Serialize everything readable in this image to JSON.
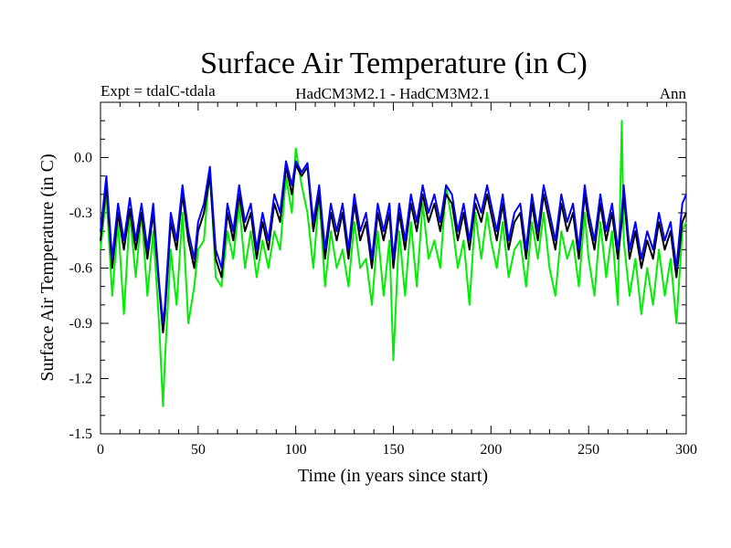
{
  "chart_data": {
    "type": "line",
    "title": "Surface Air Temperature (in C)",
    "subtitle_left": "Expt = tdalC-tdala",
    "subtitle_center": "HadCM3M2.1 - HadCM3M2.1",
    "subtitle_right": "Ann",
    "xlabel": "Time (in years since start)",
    "ylabel": "Surface Air Temperature (in C)",
    "xlim": [
      0,
      300
    ],
    "ylim": [
      -1.5,
      0.3
    ],
    "xticks": [
      0,
      50,
      100,
      150,
      200,
      250,
      300
    ],
    "xtick_labels": [
      "0",
      "50",
      "100",
      "150",
      "200",
      "250",
      "300"
    ],
    "yticks": [
      -1.5,
      -1.2,
      -0.9,
      -0.6,
      -0.3,
      0.0
    ],
    "ytick_labels": [
      "-1.5",
      "-1.2",
      "-0.9",
      "-0.6",
      "-0.3",
      "0.0"
    ],
    "grid": false,
    "x": [
      0,
      3,
      6,
      9,
      12,
      15,
      18,
      21,
      24,
      27,
      30,
      32,
      33,
      36,
      39,
      42,
      45,
      48,
      50,
      53,
      56,
      59,
      62,
      65,
      68,
      71,
      74,
      77,
      80,
      83,
      86,
      89,
      92,
      95,
      98,
      100,
      103,
      106,
      109,
      112,
      115,
      118,
      121,
      124,
      127,
      130,
      133,
      136,
      139,
      142,
      145,
      148,
      150,
      153,
      156,
      159,
      162,
      165,
      168,
      171,
      174,
      177,
      180,
      183,
      186,
      189,
      192,
      195,
      198,
      200,
      203,
      206,
      209,
      212,
      215,
      218,
      221,
      224,
      227,
      230,
      233,
      236,
      239,
      242,
      245,
      248,
      250,
      253,
      256,
      259,
      262,
      265,
      267,
      268,
      271,
      274,
      277,
      280,
      283,
      286,
      289,
      292,
      295,
      298,
      300
    ],
    "series": [
      {
        "name": "black",
        "color": "#000000",
        "values": [
          -0.45,
          -0.15,
          -0.6,
          -0.3,
          -0.5,
          -0.28,
          -0.5,
          -0.3,
          -0.55,
          -0.3,
          -0.7,
          -0.95,
          -0.85,
          -0.35,
          -0.5,
          -0.2,
          -0.45,
          -0.6,
          -0.4,
          -0.3,
          -0.1,
          -0.55,
          -0.65,
          -0.3,
          -0.45,
          -0.2,
          -0.4,
          -0.3,
          -0.55,
          -0.35,
          -0.5,
          -0.25,
          -0.35,
          -0.05,
          -0.2,
          -0.04,
          -0.1,
          -0.05,
          -0.4,
          -0.2,
          -0.55,
          -0.3,
          -0.45,
          -0.3,
          -0.55,
          -0.25,
          -0.45,
          -0.35,
          -0.6,
          -0.3,
          -0.45,
          -0.3,
          -0.6,
          -0.3,
          -0.5,
          -0.25,
          -0.4,
          -0.2,
          -0.35,
          -0.25,
          -0.4,
          -0.2,
          -0.25,
          -0.45,
          -0.3,
          -0.5,
          -0.25,
          -0.35,
          -0.2,
          -0.3,
          -0.45,
          -0.25,
          -0.5,
          -0.35,
          -0.3,
          -0.55,
          -0.25,
          -0.45,
          -0.2,
          -0.35,
          -0.5,
          -0.25,
          -0.4,
          -0.3,
          -0.55,
          -0.2,
          -0.35,
          -0.5,
          -0.25,
          -0.45,
          -0.3,
          -0.55,
          -0.35,
          -0.2,
          -0.55,
          -0.4,
          -0.6,
          -0.45,
          -0.55,
          -0.35,
          -0.5,
          -0.4,
          -0.65,
          -0.35,
          -0.3
        ]
      },
      {
        "name": "blue",
        "color": "#0000ff",
        "values": [
          -0.4,
          -0.1,
          -0.55,
          -0.25,
          -0.45,
          -0.22,
          -0.45,
          -0.25,
          -0.5,
          -0.25,
          -0.68,
          -0.9,
          -0.8,
          -0.3,
          -0.45,
          -0.15,
          -0.4,
          -0.55,
          -0.35,
          -0.25,
          -0.05,
          -0.5,
          -0.6,
          -0.25,
          -0.4,
          -0.15,
          -0.35,
          -0.25,
          -0.5,
          -0.3,
          -0.45,
          -0.2,
          -0.3,
          -0.02,
          -0.15,
          -0.02,
          -0.08,
          -0.03,
          -0.35,
          -0.15,
          -0.5,
          -0.25,
          -0.4,
          -0.25,
          -0.5,
          -0.2,
          -0.4,
          -0.3,
          -0.55,
          -0.25,
          -0.4,
          -0.25,
          -0.55,
          -0.25,
          -0.45,
          -0.2,
          -0.35,
          -0.15,
          -0.3,
          -0.2,
          -0.35,
          -0.15,
          -0.2,
          -0.4,
          -0.25,
          -0.45,
          -0.2,
          -0.3,
          -0.15,
          -0.25,
          -0.4,
          -0.2,
          -0.45,
          -0.3,
          -0.25,
          -0.5,
          -0.2,
          -0.4,
          -0.15,
          -0.3,
          -0.45,
          -0.2,
          -0.35,
          -0.25,
          -0.5,
          -0.15,
          -0.3,
          -0.45,
          -0.2,
          -0.4,
          -0.25,
          -0.5,
          -0.3,
          -0.15,
          -0.5,
          -0.35,
          -0.55,
          -0.4,
          -0.5,
          -0.3,
          -0.45,
          -0.35,
          -0.6,
          -0.25,
          -0.2
        ]
      },
      {
        "name": "green",
        "color": "#00ee00",
        "values": [
          -0.5,
          -0.2,
          -0.75,
          -0.35,
          -0.85,
          -0.3,
          -0.65,
          -0.3,
          -0.75,
          -0.4,
          -0.9,
          -1.35,
          -1.1,
          -0.5,
          -0.8,
          -0.3,
          -0.9,
          -0.7,
          -0.5,
          -0.45,
          -0.05,
          -0.65,
          -0.7,
          -0.4,
          -0.55,
          -0.25,
          -0.6,
          -0.4,
          -0.65,
          -0.45,
          -0.6,
          -0.4,
          -0.5,
          -0.1,
          -0.3,
          0.05,
          -0.15,
          -0.3,
          -0.6,
          -0.2,
          -0.7,
          -0.4,
          -0.6,
          -0.5,
          -0.7,
          -0.35,
          -0.6,
          -0.55,
          -0.8,
          -0.4,
          -0.75,
          -0.45,
          -1.1,
          -0.4,
          -0.75,
          -0.35,
          -0.7,
          -0.25,
          -0.55,
          -0.45,
          -0.6,
          -0.15,
          -0.35,
          -0.6,
          -0.45,
          -0.8,
          -0.3,
          -0.55,
          -0.3,
          -0.45,
          -0.6,
          -0.35,
          -0.65,
          -0.5,
          -0.45,
          -0.7,
          -0.35,
          -0.55,
          -0.3,
          -0.6,
          -0.75,
          -0.4,
          -0.55,
          -0.45,
          -0.7,
          -0.3,
          -0.55,
          -0.75,
          -0.35,
          -0.65,
          -0.4,
          -0.8,
          0.2,
          -0.45,
          -0.75,
          -0.55,
          -0.85,
          -0.6,
          -0.8,
          -0.5,
          -0.75,
          -0.55,
          -0.9,
          -0.4,
          -0.35
        ]
      }
    ]
  }
}
